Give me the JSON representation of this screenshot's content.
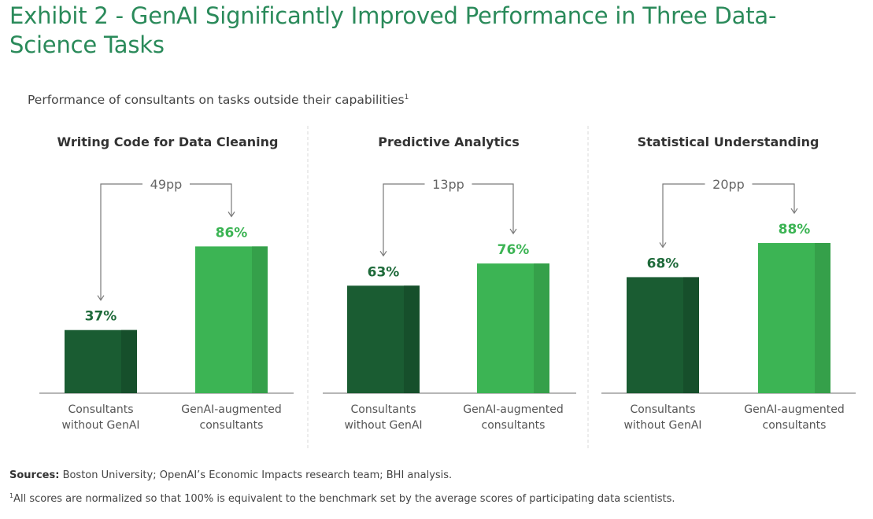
{
  "title": "Exhibit 2 - GenAI Significantly Improved Performance in Three Data-Science Tasks",
  "subtitle": "Performance of consultants on tasks outside their capabilities",
  "subtitle_footnote_mark": "1",
  "colors": {
    "title": "#2a8a5a",
    "without_genai": "#1a5c32",
    "without_genai_shade": "#164f2b",
    "with_genai": "#3cb454",
    "with_genai_shade": "#35a04a",
    "without_label": "#1e6a3a",
    "with_label": "#3cb454",
    "annotation": "#7a7a7a"
  },
  "sources_label": "Sources:",
  "sources_text": "Boston University; OpenAI’s Economic Impacts research team; BHI analysis.",
  "footnote_mark": "1",
  "footnote_text": "All scores are normalized so that 100% is equivalent to the benchmark set by the average scores of participating data scientists.",
  "chart_data": [
    {
      "type": "bar",
      "title": "Writing Code for Data Cleaning",
      "categories": [
        "Consultants without GenAI",
        "GenAI-augmented consultants"
      ],
      "category_lines": [
        [
          "Consultants",
          "without GenAI"
        ],
        [
          "GenAI-augmented",
          "consultants"
        ]
      ],
      "values": [
        37,
        86
      ],
      "data_labels": [
        "37%",
        "86%"
      ],
      "difference_label": "49pp",
      "unit": "%",
      "ylim": [
        0,
        100
      ],
      "grid": false
    },
    {
      "type": "bar",
      "title": "Predictive Analytics",
      "categories": [
        "Consultants without GenAI",
        "GenAI-augmented consultants"
      ],
      "category_lines": [
        [
          "Consultants",
          "without GenAI"
        ],
        [
          "GenAI-augmented",
          "consultants"
        ]
      ],
      "values": [
        63,
        76
      ],
      "data_labels": [
        "63%",
        "76%"
      ],
      "difference_label": "13pp",
      "unit": "%",
      "ylim": [
        0,
        100
      ],
      "grid": false
    },
    {
      "type": "bar",
      "title": "Statistical Understanding",
      "categories": [
        "Consultants without GenAI",
        "GenAI-augmented consultants"
      ],
      "category_lines": [
        [
          "Consultants",
          "without GenAI"
        ],
        [
          "GenAI-augmented",
          "consultants"
        ]
      ],
      "values": [
        68,
        88
      ],
      "data_labels": [
        "68%",
        "88%"
      ],
      "difference_label": "20pp",
      "unit": "%",
      "ylim": [
        0,
        100
      ],
      "grid": false
    }
  ]
}
